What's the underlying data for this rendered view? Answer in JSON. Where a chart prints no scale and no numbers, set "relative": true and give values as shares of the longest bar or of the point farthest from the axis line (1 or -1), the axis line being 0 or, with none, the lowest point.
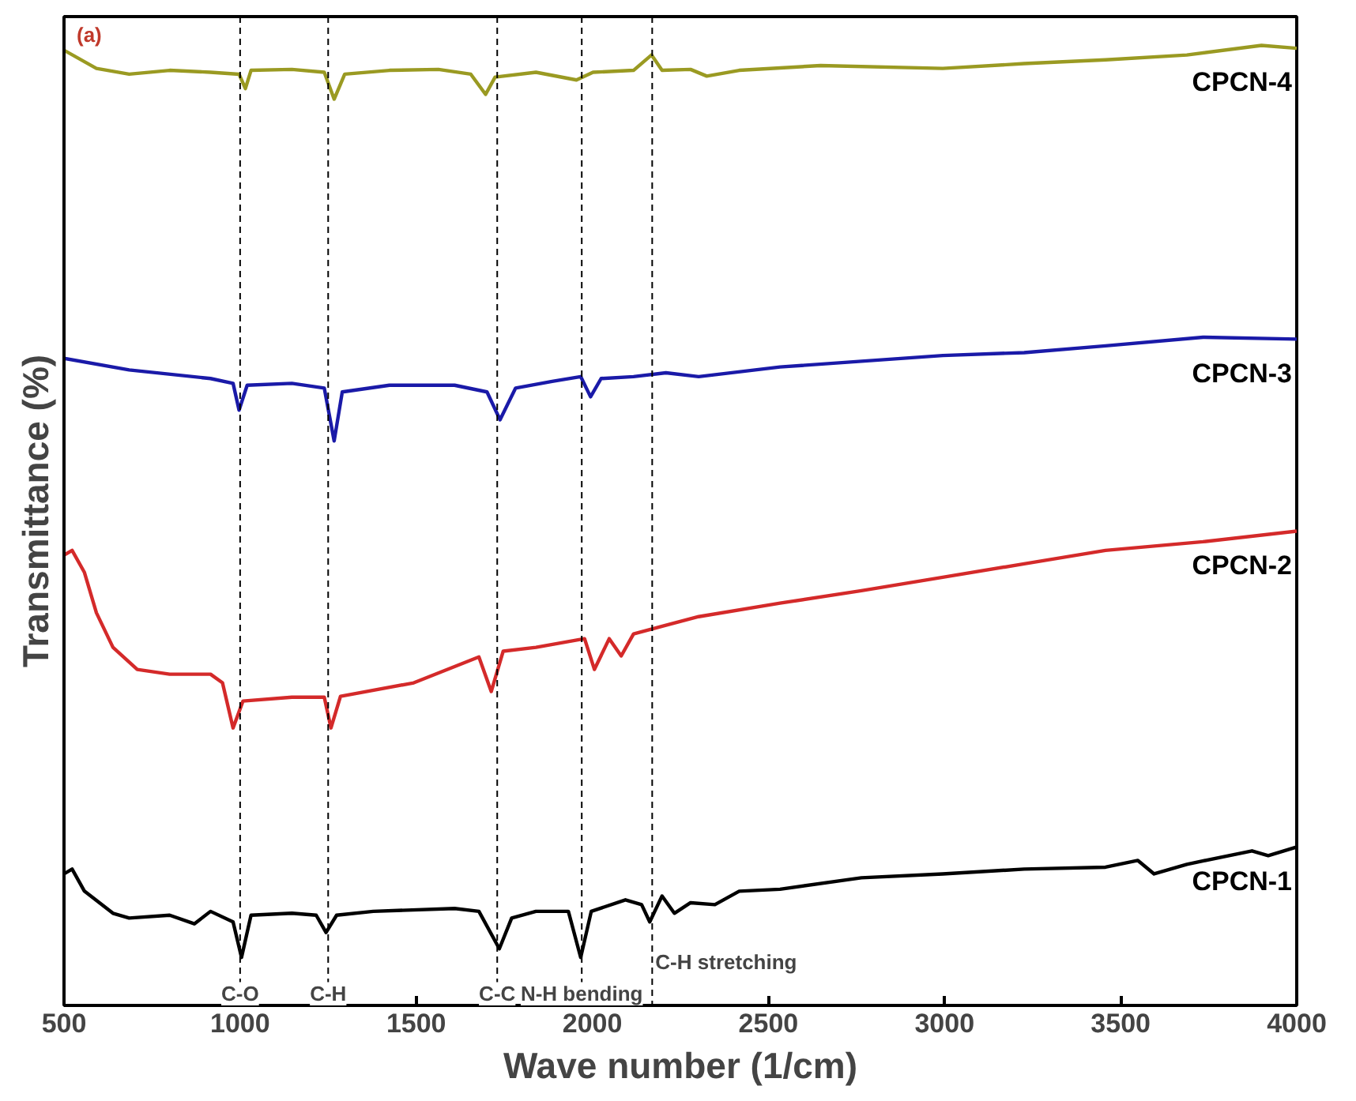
{
  "chart_data": {
    "type": "line",
    "relative": true,
    "xlabel": "Wave number (1/cm)",
    "ylabel": "Transmittance (%)",
    "annotations": [
      "(a)"
    ],
    "xlim": [
      500,
      4000
    ],
    "xticks": [
      500,
      1000,
      1500,
      2000,
      2500,
      3000,
      3500,
      4000
    ],
    "grid": false,
    "legend": false,
    "marker": "none",
    "line_style": "solid",
    "tick_labels": "x",
    "ref_lines": [
      {
        "axis": "x",
        "value": 1000,
        "label": "C-O",
        "color": "#000000",
        "line_style": "dashed"
      },
      {
        "axis": "x",
        "value": 1250,
        "label": "C-H",
        "color": "#000000",
        "line_style": "dashed"
      },
      {
        "axis": "x",
        "value": 1730,
        "label": "C-C",
        "color": "#000000",
        "line_style": "dashed"
      },
      {
        "axis": "x",
        "value": 1970,
        "label": "N-H bending",
        "color": "#000000",
        "line_style": "dashed"
      },
      {
        "axis": "x",
        "value": 2170,
        "label": "C-H stretching",
        "color": "#000000",
        "line_style": "dashed"
      }
    ],
    "series": [
      {
        "name": "CPCN-4",
        "color": "#9a9a22",
        "x": [
          500,
          592,
          685,
          800,
          916,
          997,
          1015,
          1031,
          1147,
          1239,
          1267,
          1297,
          1424,
          1563,
          1655,
          1697,
          1724,
          1840,
          1955,
          2002,
          2117,
          2168,
          2198,
          2279,
          2325,
          2417,
          2648,
          2995,
          3226,
          3457,
          3688,
          3900,
          4000
        ],
        "values": [
          0.995,
          0.976,
          0.97,
          0.974,
          0.972,
          0.97,
          0.955,
          0.974,
          0.975,
          0.972,
          0.944,
          0.97,
          0.974,
          0.975,
          0.97,
          0.949,
          0.967,
          0.972,
          0.964,
          0.972,
          0.974,
          0.99,
          0.974,
          0.975,
          0.968,
          0.974,
          0.979,
          0.976,
          0.981,
          0.985,
          0.99,
          1.0,
          0.997
        ]
      },
      {
        "name": "CPCN-3",
        "color": "#1a1aa8",
        "x": [
          500,
          685,
          916,
          980,
          997,
          1020,
          1147,
          1239,
          1267,
          1290,
          1424,
          1609,
          1701,
          1738,
          1782,
          1886,
          1967,
          1995,
          2025,
          2117,
          2209,
          2302,
          2533,
          2764,
          2995,
          3226,
          3457,
          3734,
          4000
        ],
        "values": [
          0.674,
          0.662,
          0.653,
          0.648,
          0.62,
          0.646,
          0.648,
          0.643,
          0.588,
          0.639,
          0.646,
          0.646,
          0.639,
          0.61,
          0.643,
          0.65,
          0.655,
          0.634,
          0.653,
          0.655,
          0.659,
          0.655,
          0.665,
          0.671,
          0.677,
          0.68,
          0.687,
          0.696,
          0.694
        ]
      },
      {
        "name": "CPCN-2",
        "color": "#d42a2a",
        "x": [
          500,
          523,
          558,
          592,
          639,
          708,
          800,
          916,
          950,
          980,
          1008,
          1147,
          1239,
          1258,
          1285,
          1493,
          1678,
          1713,
          1747,
          1840,
          1978,
          2006,
          2048,
          2082,
          2117,
          2209,
          2302,
          2533,
          2764,
          2995,
          3226,
          3457,
          3734,
          4000
        ],
        "values": [
          0.469,
          0.474,
          0.451,
          0.409,
          0.373,
          0.35,
          0.345,
          0.345,
          0.336,
          0.289,
          0.317,
          0.321,
          0.321,
          0.289,
          0.322,
          0.336,
          0.363,
          0.327,
          0.369,
          0.373,
          0.382,
          0.35,
          0.382,
          0.364,
          0.387,
          0.396,
          0.405,
          0.419,
          0.432,
          0.446,
          0.46,
          0.474,
          0.483,
          0.494
        ]
      },
      {
        "name": "CPCN-1",
        "color": "#000000",
        "x": [
          500,
          523,
          558,
          639,
          685,
          800,
          870,
          916,
          980,
          1004,
          1031,
          1147,
          1216,
          1244,
          1274,
          1378,
          1609,
          1678,
          1736,
          1771,
          1840,
          1932,
          1967,
          1997,
          2094,
          2140,
          2163,
          2198,
          2233,
          2279,
          2348,
          2417,
          2533,
          2764,
          2995,
          3226,
          3457,
          3549,
          3595,
          3688,
          3873,
          3919,
          4000
        ],
        "values": [
          0.137,
          0.142,
          0.119,
          0.096,
          0.091,
          0.094,
          0.085,
          0.098,
          0.087,
          0.05,
          0.094,
          0.096,
          0.094,
          0.076,
          0.094,
          0.098,
          0.101,
          0.098,
          0.059,
          0.091,
          0.098,
          0.098,
          0.05,
          0.098,
          0.11,
          0.105,
          0.087,
          0.114,
          0.096,
          0.107,
          0.105,
          0.119,
          0.121,
          0.133,
          0.137,
          0.142,
          0.144,
          0.151,
          0.137,
          0.147,
          0.161,
          0.156,
          0.165
        ]
      }
    ]
  }
}
